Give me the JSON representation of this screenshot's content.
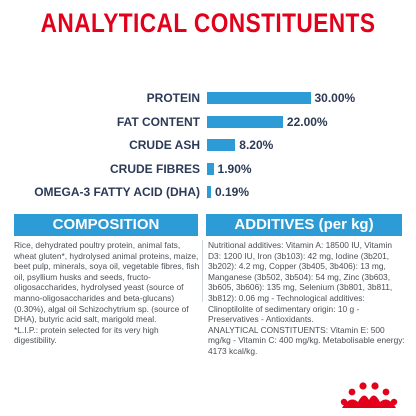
{
  "title": "ANALYTICAL CONSTITUENTS",
  "analysis": [
    {
      "label": "PROTEIN",
      "value": "30.00%",
      "pct": 30.0
    },
    {
      "label": "FAT CONTENT",
      "value": "22.00%",
      "pct": 22.0
    },
    {
      "label": "CRUDE ASH",
      "value": "8.20%",
      "pct": 8.2
    },
    {
      "label": "CRUDE FIBRES",
      "value": "1.90%",
      "pct": 1.9
    },
    {
      "label": "OMEGA-3 FATTY ACID (DHA)",
      "value": "0.19%",
      "pct": 0.19
    }
  ],
  "composition": {
    "header": "COMPOSITION",
    "text": "Rice, dehydrated poultry protein, animal fats, wheat gluten*, hydrolysed animal proteins, maize, beet pulp, minerals, soya oil, vegetable fibres, fish oil, psyllium husks and seeds, fructo-oligosaccharides, hydrolysed yeast (source of manno-oligosaccharides and beta-glucans) (0.30%), algal oil Schizochytrium sp. (source of DHA), butyric acid salt, marigold meal.",
    "note": "*L.I.P.: protein selected for its very high digestibility."
  },
  "additives": {
    "header": "ADDITIVES (per kg)",
    "nutritional": "Nutritional additives: Vitamin A: 18500 IU, Vitamin D3: 1200 IU, Iron (3b103): 42 mg, Iodine (3b201, 3b202): 4.2 mg, Copper (3b405, 3b406): 13 mg, Manganese (3b502, 3b504): 54 mg, Zinc (3b603, 3b605, 3b606): 135 mg, Selenium (3b801, 3b811, 3b812): 0.06 mg - Technological additives: Clinoptilolite of sedimentary origin: 10 g - Preservatives - Antioxidants.",
    "constituents": "ANALYTICAL CONSTITUENTS: Vitamin E: 500 mg/kg - Vitamin C: 400 mg/kg. Metabolisable energy: 4173 kcal/kg."
  },
  "logo": {
    "name": "crown-logo",
    "color": "#e2001a"
  },
  "colors": {
    "title": "#e2001a",
    "accent": "#2c9bd6",
    "label": "#2b3a56"
  }
}
